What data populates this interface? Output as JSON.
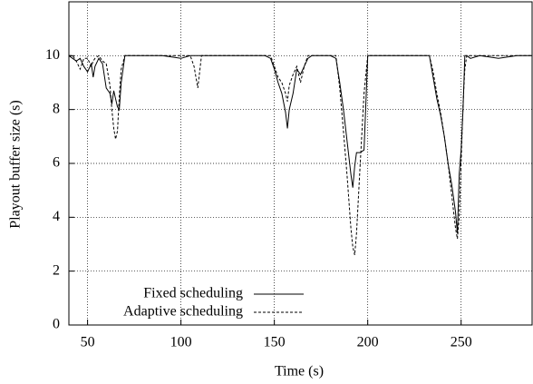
{
  "chart_data": {
    "type": "line",
    "xlabel": "Time (s)",
    "ylabel": "Playout buffer size (s)",
    "x": [
      40,
      42,
      44,
      46,
      48,
      50,
      52,
      53,
      54,
      56,
      58,
      60,
      62,
      63,
      64,
      65,
      66,
      67,
      68,
      70,
      72,
      80,
      90,
      100,
      105,
      107,
      109,
      111,
      115,
      125,
      135,
      145,
      148,
      150,
      152,
      154,
      156,
      157,
      158,
      160,
      162,
      164,
      166,
      168,
      170,
      175,
      180,
      183,
      185,
      187,
      189,
      191,
      192,
      193,
      194,
      196,
      198,
      200,
      203,
      210,
      220,
      230,
      233,
      235,
      237,
      239,
      241,
      243,
      245,
      247,
      248,
      249,
      250,
      251,
      252,
      253,
      255,
      260,
      270,
      280,
      288
    ],
    "series": [
      {
        "name": "Fixed scheduling",
        "color": "#000000",
        "dash": "none",
        "values": [
          10,
          9.9,
          9.8,
          9.9,
          9.6,
          9.4,
          9.7,
          9.2,
          9.6,
          9.9,
          9.7,
          8.8,
          8.6,
          8.2,
          8.7,
          8.4,
          8.1,
          8.0,
          9.0,
          10,
          10,
          10,
          10,
          9.9,
          10,
          10,
          10,
          10,
          10,
          10,
          10,
          10,
          9.9,
          9.5,
          9.0,
          8.6,
          7.9,
          7.3,
          8.0,
          8.6,
          9.5,
          9.3,
          9.6,
          9.9,
          10,
          10,
          10,
          9.9,
          9.0,
          8.0,
          6.8,
          5.6,
          5.1,
          5.9,
          6.4,
          6.4,
          6.5,
          10,
          10,
          10,
          10,
          10,
          10,
          9.2,
          8.4,
          7.8,
          7.0,
          6.0,
          5.2,
          4.2,
          3.4,
          5.6,
          6.5,
          8.0,
          10,
          10,
          9.9,
          10,
          9.9,
          10,
          10
        ]
      },
      {
        "name": "Adaptive scheduling",
        "color": "#000000",
        "dash": "3,2",
        "values": [
          10,
          10,
          9.8,
          9.5,
          9.9,
          9.9,
          9.6,
          9.8,
          9.9,
          10,
          9.8,
          9.7,
          8.9,
          8.0,
          7.3,
          6.9,
          7.2,
          8.5,
          9.5,
          10,
          10,
          10,
          10,
          10,
          10,
          9.6,
          8.8,
          10,
          10,
          10,
          10,
          10,
          10,
          9.6,
          9.2,
          9.0,
          8.6,
          8.3,
          8.9,
          9.3,
          9.6,
          9.0,
          9.6,
          10,
          10,
          10,
          10,
          10,
          8.8,
          7.2,
          5.5,
          3.6,
          2.9,
          2.6,
          3.4,
          6.0,
          8.6,
          10,
          10,
          10,
          10,
          10,
          10,
          9.4,
          8.6,
          7.9,
          7.0,
          6.0,
          4.8,
          3.6,
          3.2,
          4.0,
          6.0,
          8.2,
          9.5,
          10,
          10,
          10,
          10,
          10,
          10
        ]
      }
    ],
    "xlim": [
      40,
      288
    ],
    "ylim": [
      0,
      12
    ],
    "xticks": [
      50,
      100,
      150,
      200,
      250
    ],
    "yticks": [
      0,
      2,
      4,
      6,
      8,
      10
    ],
    "grid": true,
    "legend": "lower-left"
  }
}
